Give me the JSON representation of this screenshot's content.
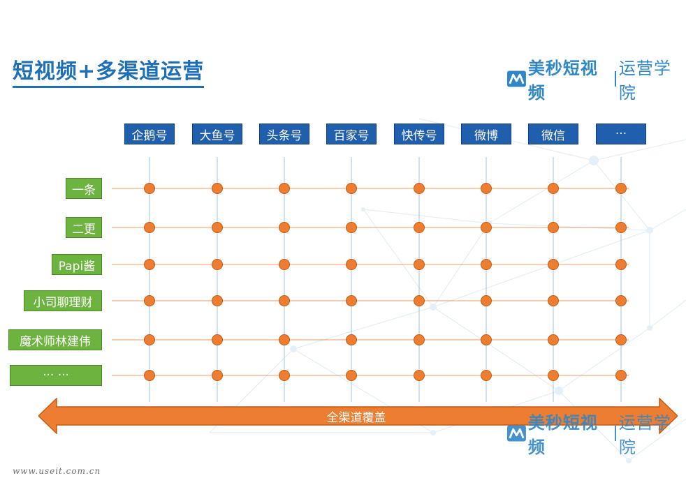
{
  "title": "短视频+多渠道运营",
  "brand": {
    "name": "美秒短视频",
    "sub": "运营学院",
    "logo_icon": "brand-m-logo-icon",
    "color": "#2f87c8"
  },
  "platforms": [
    "企鹅号",
    "大鱼号",
    "头条号",
    "百家号",
    "快传号",
    "微博",
    "微信",
    "···"
  ],
  "accounts": [
    "一条",
    "二更",
    "Papi酱",
    "小司聊理财",
    "魔术师林建伟",
    "··· ···"
  ],
  "arrow_label": "全渠道覆盖",
  "website": "www.useit.com.cn",
  "colors": {
    "title": "#1d6fb8",
    "platform_box": "#1f5fae",
    "account_box": "#6db33f",
    "node": "#ed7d31",
    "arrow": "#ed7d31",
    "vertical_line": "#9cc3e6"
  }
}
